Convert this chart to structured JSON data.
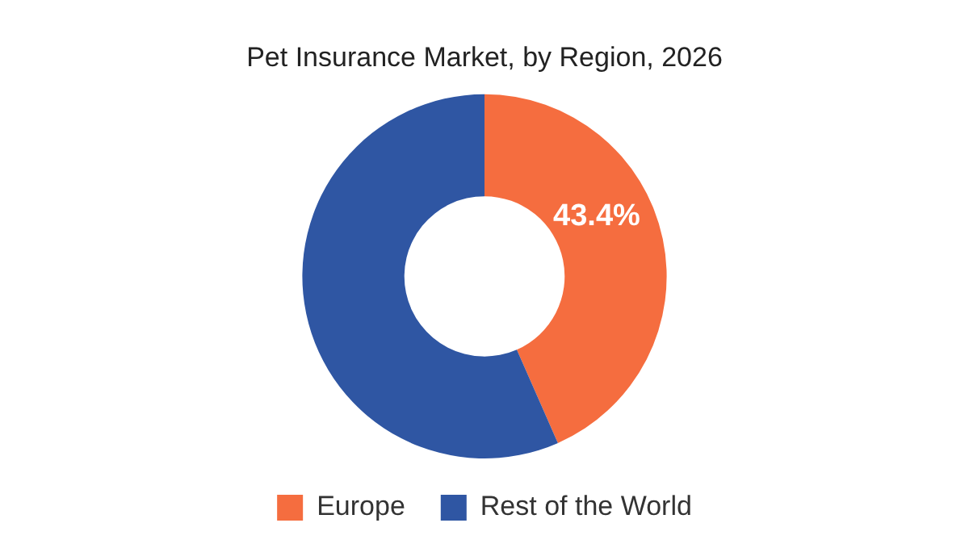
{
  "chart_data": {
    "type": "donut",
    "title": "Pet Insurance Market, by Region, 2026",
    "categories": [
      "Europe",
      "Rest of the World"
    ],
    "values": [
      43.4,
      56.6
    ],
    "value_labels": [
      "43.4%",
      null
    ],
    "colors": [
      "#f56d3f",
      "#2f56a3"
    ],
    "legend": "bottom"
  }
}
